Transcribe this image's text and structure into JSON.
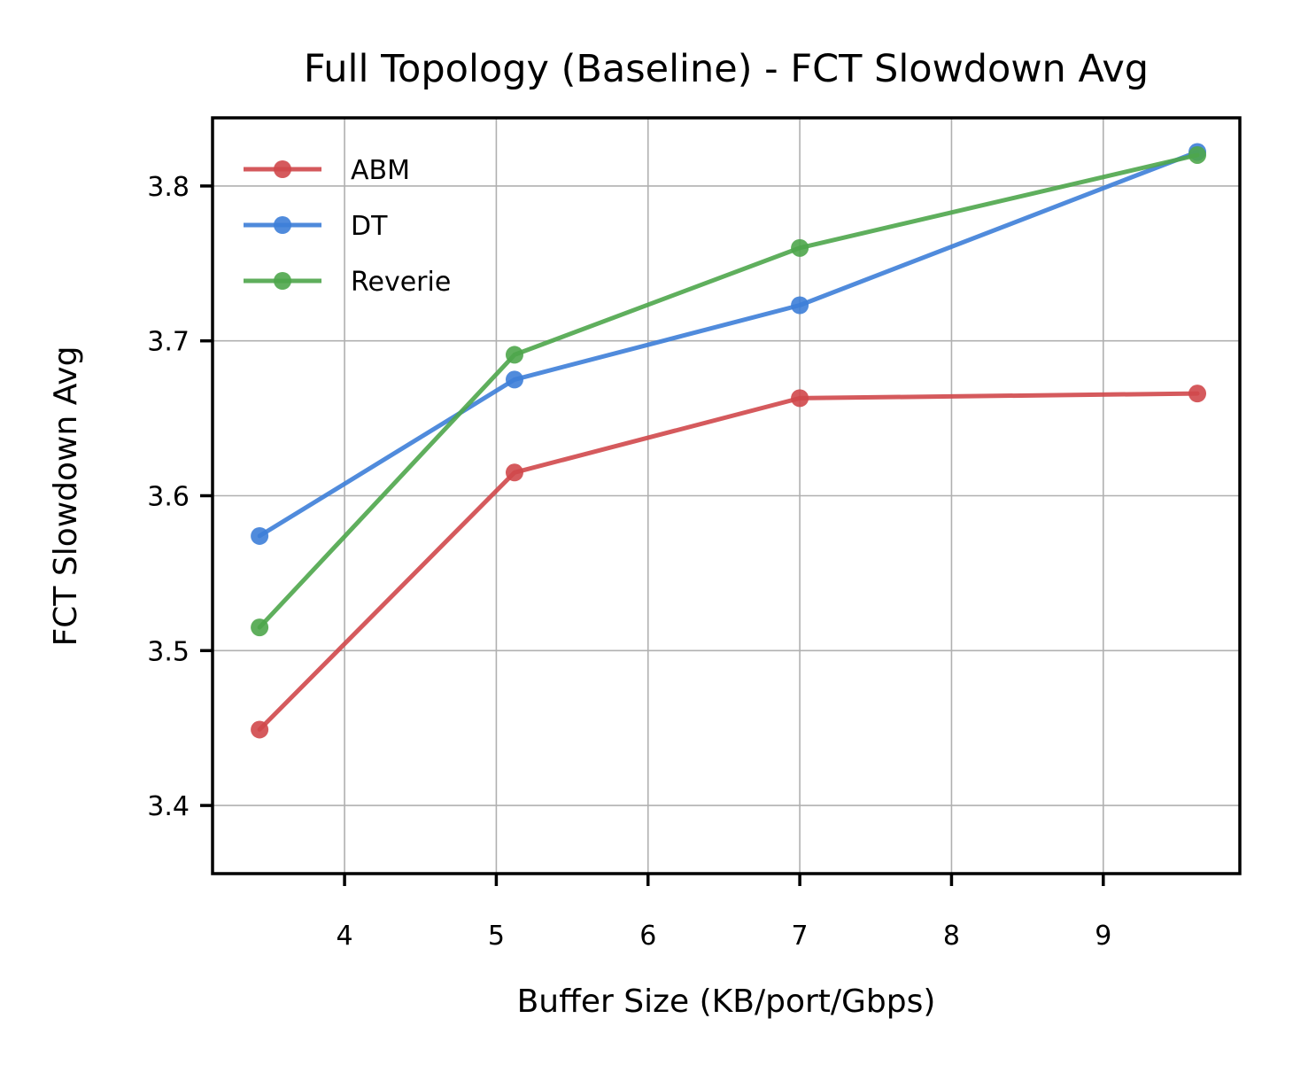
{
  "chart_data": {
    "type": "line",
    "title": "Full Topology (Baseline) - FCT Slowdown Avg",
    "xlabel": "Buffer Size (KB/port/Gbps)",
    "ylabel": "FCT Slowdown Avg",
    "xlim": [
      3.13,
      9.9
    ],
    "ylim": [
      3.356,
      3.844
    ],
    "xticks": [
      4,
      5,
      6,
      7,
      8,
      9
    ],
    "yticks": [
      3.4,
      3.5,
      3.6,
      3.7,
      3.8
    ],
    "grid": true,
    "legend_position": "upper-left",
    "x": [
      3.44,
      5.12,
      7.0,
      9.62
    ],
    "series": [
      {
        "name": "ABM",
        "color": "#d0484b",
        "values": [
          3.449,
          3.615,
          3.663,
          3.666
        ]
      },
      {
        "name": "DT",
        "color": "#3d7ed8",
        "values": [
          3.574,
          3.675,
          3.723,
          3.822
        ]
      },
      {
        "name": "Reverie",
        "color": "#4ea64b",
        "values": [
          3.515,
          3.691,
          3.76,
          3.82
        ]
      }
    ]
  }
}
